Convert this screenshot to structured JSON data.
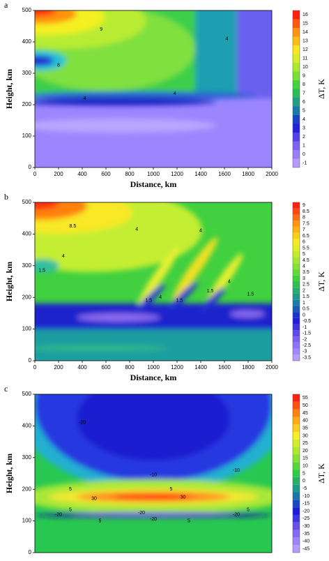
{
  "chart_data": [
    {
      "type": "contour",
      "panel_label": "a",
      "xlabel": "Distance, km",
      "ylabel": "Height, km",
      "colorbar_label": "ΔT, K",
      "xlim": [
        0,
        2000
      ],
      "xticks": [
        0,
        200,
        400,
        600,
        800,
        1000,
        1200,
        1400,
        1600,
        1800,
        2000
      ],
      "ylim": [
        0,
        500
      ],
      "yticks": [
        0,
        100,
        200,
        300,
        400,
        500
      ],
      "levels": [
        -1,
        0,
        1,
        2,
        3,
        4,
        5,
        6,
        7,
        8,
        9,
        10,
        11,
        12,
        13,
        14,
        15,
        16
      ],
      "colormap": [
        "#b49cff",
        "#7a5cf0",
        "#1a1ad8",
        "#1a8ca0",
        "#2ecc40",
        "#9ae830",
        "#f8f020",
        "#ff9a10",
        "#ff2010"
      ],
      "contour_labels": [
        {
          "x": 560,
          "y": 440,
          "value": 9
        },
        {
          "x": 1620,
          "y": 410,
          "value": 4
        },
        {
          "x": 420,
          "y": 220,
          "value": 4
        },
        {
          "x": 1180,
          "y": 235,
          "value": 4
        },
        {
          "x": 200,
          "y": 325,
          "value": 8
        }
      ]
    },
    {
      "type": "contour",
      "panel_label": "b",
      "xlabel": "Distance, km",
      "ylabel": "Height, km",
      "colorbar_label": "ΔT, K",
      "xlim": [
        0,
        2000
      ],
      "xticks": [
        0,
        200,
        400,
        600,
        800,
        1000,
        1200,
        1400,
        1600,
        1800,
        2000
      ],
      "ylim": [
        0,
        500
      ],
      "yticks": [
        0,
        100,
        200,
        300,
        400,
        500
      ],
      "levels": [
        -3.5,
        -3,
        -2.5,
        -2,
        -1.5,
        -1,
        -0.5,
        0,
        0.5,
        1,
        1.5,
        2,
        2.5,
        3,
        3.5,
        4,
        4.5,
        5,
        5.5,
        6,
        6.5,
        7,
        7.5,
        8,
        8.5,
        9
      ],
      "colormap": [
        "#b49cff",
        "#7a5cf0",
        "#1a1ad8",
        "#1a8ca0",
        "#2ecc40",
        "#9ae830",
        "#f8f020",
        "#ff9a10",
        "#ff2010"
      ],
      "contour_labels": [
        {
          "x": 320,
          "y": 425,
          "value": 8.5
        },
        {
          "x": 860,
          "y": 415,
          "value": 4
        },
        {
          "x": 1400,
          "y": 410,
          "value": 4
        },
        {
          "x": 240,
          "y": 330,
          "value": 4
        },
        {
          "x": 60,
          "y": 285,
          "value": 1.5
        },
        {
          "x": 960,
          "y": 190,
          "value": 1.5
        },
        {
          "x": 1060,
          "y": 200,
          "value": 4
        },
        {
          "x": 1220,
          "y": 190,
          "value": 1.5
        },
        {
          "x": 1480,
          "y": 220,
          "value": 1.5
        },
        {
          "x": 1640,
          "y": 250,
          "value": 4
        },
        {
          "x": 1820,
          "y": 210,
          "value": 1.5
        }
      ]
    },
    {
      "type": "contour",
      "panel_label": "c",
      "ylabel": "Height, km",
      "colorbar_label": "ΔT, K",
      "xlim": [
        0,
        2000
      ],
      "ylim": [
        0,
        500
      ],
      "yticks": [
        0,
        100,
        200,
        300,
        400,
        500
      ],
      "levels": [
        -45,
        -40,
        -35,
        -30,
        -25,
        -20,
        -15,
        -10,
        -5,
        0,
        5,
        10,
        15,
        20,
        25,
        30,
        35,
        40,
        45,
        50,
        55
      ],
      "colormap": [
        "#b49cff",
        "#7a5cf0",
        "#1a1ad8",
        "#1a8ca0",
        "#2ecc40",
        "#9ae830",
        "#f8f020",
        "#ff9a10",
        "#ff2010"
      ],
      "contour_labels": [
        {
          "x": 400,
          "y": 410,
          "value": -20
        },
        {
          "x": 1000,
          "y": 245,
          "value": -10
        },
        {
          "x": 1700,
          "y": 260,
          "value": -10
        },
        {
          "x": 300,
          "y": 200,
          "value": 5
        },
        {
          "x": 1150,
          "y": 200,
          "value": 5
        },
        {
          "x": 500,
          "y": 170,
          "value": 30
        },
        {
          "x": 1250,
          "y": 175,
          "value": 30
        },
        {
          "x": 300,
          "y": 135,
          "value": 5
        },
        {
          "x": 1800,
          "y": 135,
          "value": 5
        },
        {
          "x": 900,
          "y": 125,
          "value": -20
        },
        {
          "x": 1000,
          "y": 105,
          "value": -20
        },
        {
          "x": 200,
          "y": 120,
          "value": -20
        },
        {
          "x": 1700,
          "y": 120,
          "value": -20
        },
        {
          "x": 550,
          "y": 100,
          "value": 5
        },
        {
          "x": 1300,
          "y": 100,
          "value": 5
        }
      ]
    }
  ]
}
